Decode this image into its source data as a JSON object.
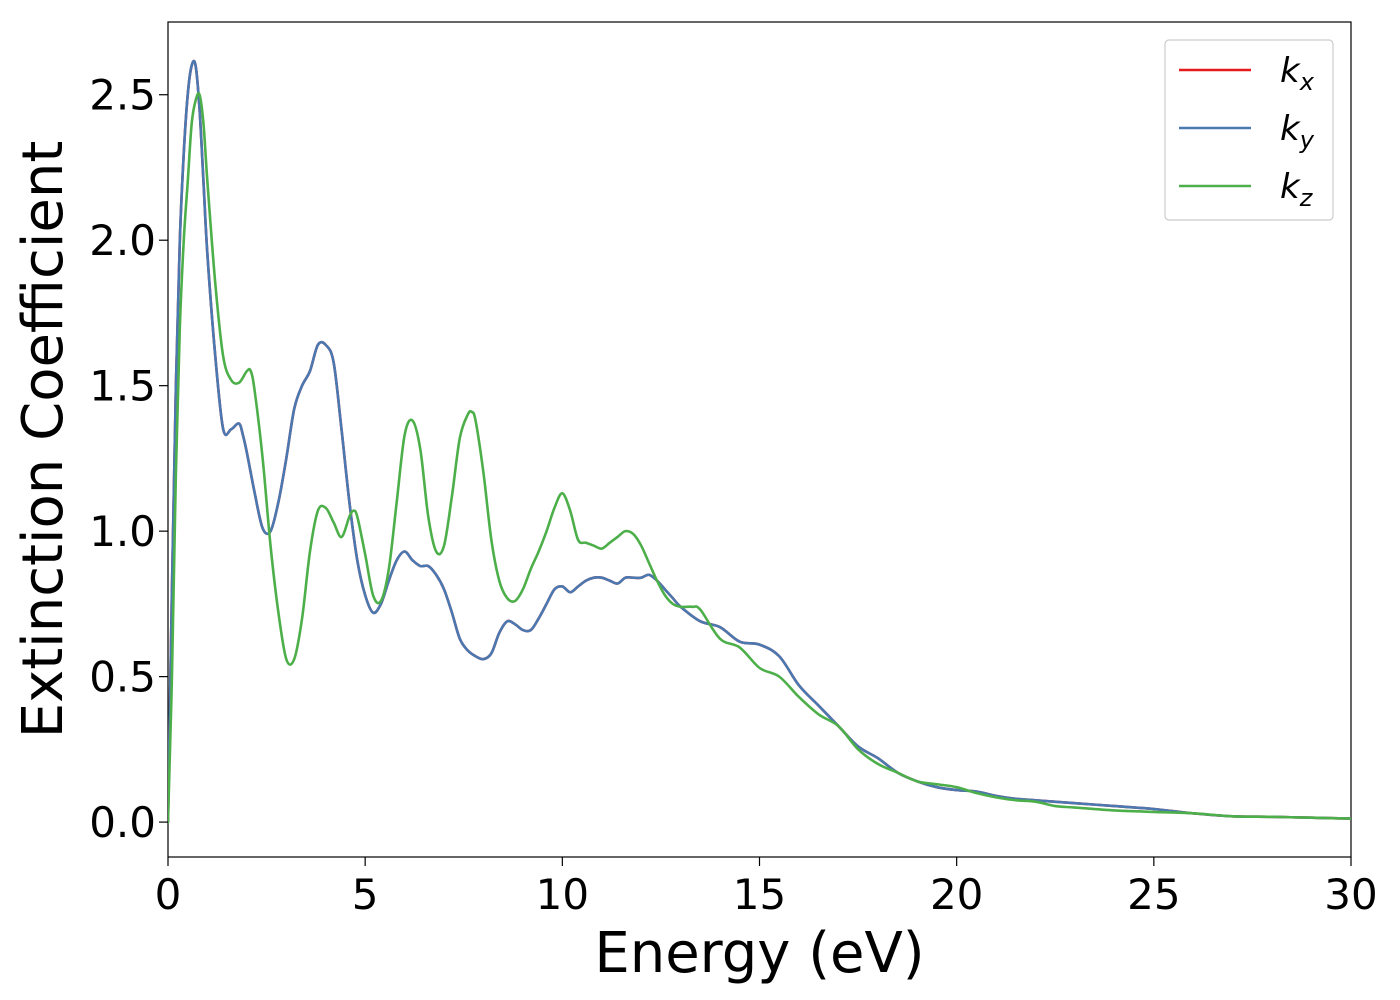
{
  "chart_data": {
    "type": "line",
    "xlabel": "Energy (eV)",
    "ylabel": "Extinction Coefficient",
    "xlim": [
      0,
      30
    ],
    "ylim": [
      -0.12,
      2.75
    ],
    "xticks": [
      0,
      5,
      10,
      15,
      20,
      25,
      30
    ],
    "xtick_labels": [
      "0",
      "5",
      "10",
      "15",
      "20",
      "25",
      "30"
    ],
    "yticks": [
      0.0,
      0.5,
      1.0,
      1.5,
      2.0,
      2.5
    ],
    "ytick_labels": [
      "0.0",
      "0.5",
      "1.0",
      "1.5",
      "2.0",
      "2.5"
    ],
    "grid": false,
    "legend_position": "top-right",
    "series": [
      {
        "name": "k",
        "subscript": "x",
        "color": "#e41a1c",
        "x": [
          0,
          0.1,
          0.2,
          0.3,
          0.4,
          0.5,
          0.6,
          0.7,
          0.8,
          0.9,
          1.0,
          1.2,
          1.4,
          1.6,
          1.8,
          1.9,
          2.0,
          2.2,
          2.4,
          2.6,
          2.8,
          3.0,
          3.2,
          3.4,
          3.6,
          3.8,
          4.0,
          4.2,
          4.4,
          4.6,
          4.8,
          5.0,
          5.2,
          5.4,
          5.6,
          5.8,
          6.0,
          6.2,
          6.4,
          6.6,
          6.8,
          7.0,
          7.2,
          7.4,
          7.6,
          7.8,
          8.0,
          8.2,
          8.4,
          8.6,
          8.8,
          9.0,
          9.2,
          9.4,
          9.6,
          9.8,
          10.0,
          10.2,
          10.4,
          10.6,
          10.8,
          11.0,
          11.2,
          11.4,
          11.6,
          11.8,
          12.0,
          12.2,
          12.4,
          12.6,
          12.8,
          13.0,
          13.5,
          14.0,
          14.5,
          15.0,
          15.5,
          16.0,
          16.5,
          17.0,
          17.5,
          18.0,
          18.5,
          19.0,
          19.5,
          20.0,
          20.5,
          21.0,
          21.5,
          22.0,
          23.0,
          24.0,
          25.0,
          26.0,
          27.0,
          28.0,
          29.0,
          30.0
        ],
        "values": [
          0.0,
          0.8,
          1.5,
          2.0,
          2.3,
          2.5,
          2.6,
          2.6,
          2.45,
          2.2,
          1.95,
          1.6,
          1.35,
          1.35,
          1.37,
          1.33,
          1.27,
          1.13,
          1.01,
          1.0,
          1.1,
          1.25,
          1.42,
          1.5,
          1.55,
          1.64,
          1.64,
          1.58,
          1.35,
          1.1,
          0.9,
          0.78,
          0.72,
          0.75,
          0.83,
          0.9,
          0.93,
          0.9,
          0.88,
          0.88,
          0.85,
          0.8,
          0.72,
          0.63,
          0.59,
          0.57,
          0.56,
          0.58,
          0.65,
          0.69,
          0.68,
          0.66,
          0.66,
          0.7,
          0.75,
          0.8,
          0.81,
          0.79,
          0.81,
          0.83,
          0.84,
          0.84,
          0.83,
          0.82,
          0.84,
          0.84,
          0.84,
          0.85,
          0.83,
          0.8,
          0.77,
          0.74,
          0.69,
          0.67,
          0.62,
          0.61,
          0.57,
          0.47,
          0.4,
          0.33,
          0.26,
          0.22,
          0.17,
          0.14,
          0.12,
          0.11,
          0.105,
          0.09,
          0.08,
          0.075,
          0.065,
          0.055,
          0.045,
          0.03,
          0.02,
          0.018,
          0.015,
          0.012
        ]
      },
      {
        "name": "k",
        "subscript": "y",
        "color": "#4a78b0",
        "x": [
          0,
          0.1,
          0.2,
          0.3,
          0.4,
          0.5,
          0.6,
          0.7,
          0.8,
          0.9,
          1.0,
          1.2,
          1.4,
          1.6,
          1.8,
          1.9,
          2.0,
          2.2,
          2.4,
          2.6,
          2.8,
          3.0,
          3.2,
          3.4,
          3.6,
          3.8,
          4.0,
          4.2,
          4.4,
          4.6,
          4.8,
          5.0,
          5.2,
          5.4,
          5.6,
          5.8,
          6.0,
          6.2,
          6.4,
          6.6,
          6.8,
          7.0,
          7.2,
          7.4,
          7.6,
          7.8,
          8.0,
          8.2,
          8.4,
          8.6,
          8.8,
          9.0,
          9.2,
          9.4,
          9.6,
          9.8,
          10.0,
          10.2,
          10.4,
          10.6,
          10.8,
          11.0,
          11.2,
          11.4,
          11.6,
          11.8,
          12.0,
          12.2,
          12.4,
          12.6,
          12.8,
          13.0,
          13.5,
          14.0,
          14.5,
          15.0,
          15.5,
          16.0,
          16.5,
          17.0,
          17.5,
          18.0,
          18.5,
          19.0,
          19.5,
          20.0,
          20.5,
          21.0,
          21.5,
          22.0,
          23.0,
          24.0,
          25.0,
          26.0,
          27.0,
          28.0,
          29.0,
          30.0
        ],
        "values": [
          0.0,
          0.8,
          1.5,
          2.0,
          2.3,
          2.5,
          2.6,
          2.6,
          2.45,
          2.2,
          1.95,
          1.6,
          1.35,
          1.35,
          1.37,
          1.33,
          1.27,
          1.13,
          1.01,
          1.0,
          1.1,
          1.25,
          1.42,
          1.5,
          1.55,
          1.64,
          1.64,
          1.58,
          1.35,
          1.1,
          0.9,
          0.78,
          0.72,
          0.75,
          0.83,
          0.9,
          0.93,
          0.9,
          0.88,
          0.88,
          0.85,
          0.8,
          0.72,
          0.63,
          0.59,
          0.57,
          0.56,
          0.58,
          0.65,
          0.69,
          0.68,
          0.66,
          0.66,
          0.7,
          0.75,
          0.8,
          0.81,
          0.79,
          0.81,
          0.83,
          0.84,
          0.84,
          0.83,
          0.82,
          0.84,
          0.84,
          0.84,
          0.85,
          0.83,
          0.8,
          0.77,
          0.74,
          0.69,
          0.67,
          0.62,
          0.61,
          0.57,
          0.47,
          0.4,
          0.33,
          0.26,
          0.22,
          0.17,
          0.14,
          0.12,
          0.11,
          0.105,
          0.09,
          0.08,
          0.075,
          0.065,
          0.055,
          0.045,
          0.03,
          0.02,
          0.018,
          0.015,
          0.012
        ]
      },
      {
        "name": "k",
        "subscript": "z",
        "color": "#4daf4a",
        "x": [
          0,
          0.1,
          0.2,
          0.3,
          0.4,
          0.5,
          0.6,
          0.7,
          0.8,
          0.9,
          1.0,
          1.2,
          1.4,
          1.6,
          1.8,
          2.0,
          2.1,
          2.2,
          2.4,
          2.6,
          2.8,
          3.0,
          3.2,
          3.4,
          3.6,
          3.8,
          4.0,
          4.2,
          4.4,
          4.6,
          4.7,
          4.8,
          5.0,
          5.2,
          5.4,
          5.6,
          5.8,
          6.0,
          6.2,
          6.4,
          6.6,
          6.8,
          7.0,
          7.2,
          7.4,
          7.6,
          7.7,
          7.8,
          8.0,
          8.2,
          8.4,
          8.6,
          8.8,
          9.0,
          9.2,
          9.4,
          9.6,
          9.8,
          10.0,
          10.2,
          10.4,
          10.6,
          10.8,
          11.0,
          11.2,
          11.4,
          11.6,
          11.8,
          12.0,
          12.2,
          12.4,
          12.6,
          12.8,
          13.0,
          13.3,
          13.5,
          14.0,
          14.5,
          15.0,
          15.5,
          16.0,
          16.5,
          17.0,
          17.5,
          18.0,
          18.5,
          19.0,
          19.5,
          20.0,
          20.5,
          21.0,
          21.5,
          22.0,
          22.5,
          23.0,
          24.0,
          25.0,
          26.0,
          27.0,
          28.0,
          29.0,
          30.0
        ],
        "values": [
          0.0,
          0.5,
          1.2,
          1.7,
          2.0,
          2.2,
          2.4,
          2.48,
          2.5,
          2.4,
          2.2,
          1.85,
          1.6,
          1.52,
          1.51,
          1.55,
          1.55,
          1.48,
          1.25,
          0.95,
          0.72,
          0.56,
          0.56,
          0.7,
          0.93,
          1.07,
          1.08,
          1.03,
          0.98,
          1.05,
          1.07,
          1.05,
          0.92,
          0.78,
          0.76,
          0.87,
          1.1,
          1.33,
          1.38,
          1.28,
          1.05,
          0.93,
          0.95,
          1.12,
          1.32,
          1.4,
          1.41,
          1.38,
          1.2,
          0.97,
          0.83,
          0.77,
          0.76,
          0.8,
          0.87,
          0.93,
          1.0,
          1.08,
          1.13,
          1.07,
          0.97,
          0.96,
          0.95,
          0.94,
          0.96,
          0.98,
          1.0,
          0.99,
          0.95,
          0.89,
          0.83,
          0.78,
          0.75,
          0.74,
          0.74,
          0.73,
          0.63,
          0.6,
          0.53,
          0.5,
          0.43,
          0.37,
          0.33,
          0.25,
          0.2,
          0.17,
          0.14,
          0.13,
          0.12,
          0.1,
          0.085,
          0.075,
          0.07,
          0.055,
          0.05,
          0.04,
          0.035,
          0.03,
          0.02,
          0.018,
          0.015,
          0.012
        ]
      }
    ]
  }
}
